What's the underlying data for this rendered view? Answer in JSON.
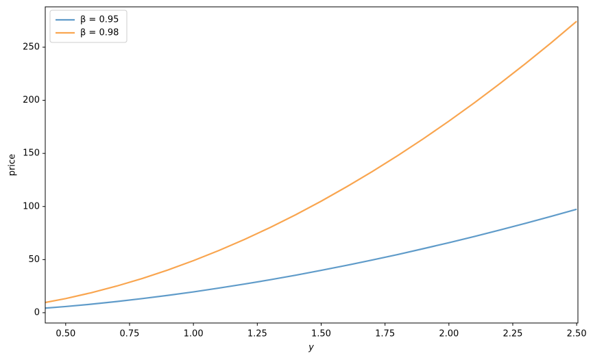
{
  "chart_data": {
    "type": "line",
    "x_label": "y",
    "y_label": "price",
    "x": [
      0.42,
      0.5,
      0.6,
      0.7,
      0.8,
      0.9,
      1.0,
      1.1,
      1.2,
      1.3,
      1.4,
      1.5,
      1.6,
      1.7,
      1.8,
      1.9,
      2.0,
      2.1,
      2.2,
      2.3,
      2.4,
      2.5
    ],
    "series": [
      {
        "name": "β = 0.95",
        "color": "#5f9bc9",
        "values": [
          4.3,
          5.8,
          8.0,
          10.5,
          13.3,
          16.3,
          19.6,
          23.2,
          27.0,
          31.0,
          35.3,
          39.9,
          44.6,
          49.6,
          54.8,
          60.3,
          65.9,
          71.8,
          77.9,
          84.2,
          90.7,
          97.4
        ]
      },
      {
        "name": "β = 0.98",
        "color": "#f9a54f",
        "values": [
          9.6,
          13.3,
          18.8,
          25.1,
          32.2,
          40.2,
          49.0,
          58.6,
          69.0,
          80.2,
          92.2,
          105.0,
          118.6,
          132.9,
          148.0,
          163.8,
          180.4,
          197.7,
          215.8,
          234.6,
          254.1,
          274.4
        ]
      }
    ],
    "xlim": [
      0.42,
      2.505
    ],
    "ylim": [
      -9.7,
      288
    ],
    "xticks": [
      {
        "value": 0.5,
        "label": "0.50"
      },
      {
        "value": 0.75,
        "label": "0.75"
      },
      {
        "value": 1.0,
        "label": "1.00"
      },
      {
        "value": 1.25,
        "label": "1.25"
      },
      {
        "value": 1.5,
        "label": "1.50"
      },
      {
        "value": 1.75,
        "label": "1.75"
      },
      {
        "value": 2.0,
        "label": "2.00"
      },
      {
        "value": 2.25,
        "label": "2.25"
      },
      {
        "value": 2.5,
        "label": "2.50"
      }
    ],
    "yticks": [
      0,
      50,
      100,
      150,
      200,
      250
    ],
    "legend": "upper left",
    "grid": false
  }
}
